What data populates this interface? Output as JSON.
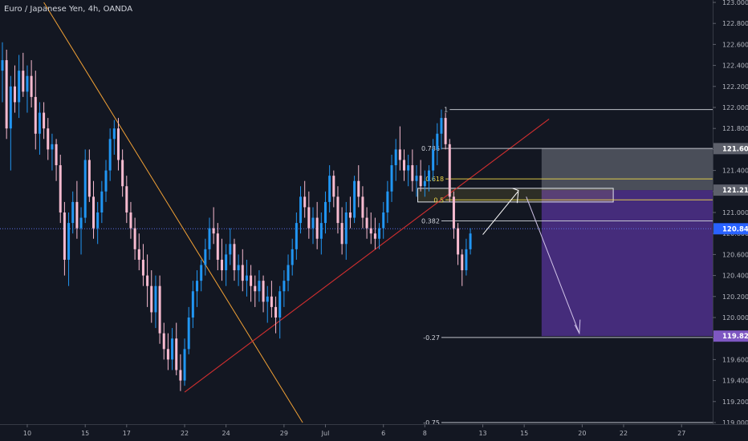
{
  "chart_data": {
    "type": "candlestick",
    "title": "Euro / Japanese Yen, 4h, OANDA",
    "ylim": [
      119.0,
      123.0
    ],
    "xlim": [
      0,
      180
    ],
    "y_ticks": [
      "123.000",
      "122.800",
      "122.600",
      "122.400",
      "122.200",
      "122.000",
      "121.800",
      "121.600",
      "121.400",
      "121.200",
      "121.000",
      "120.800",
      "120.600",
      "120.400",
      "120.200",
      "120.000",
      "119.800",
      "119.600",
      "119.400",
      "119.200",
      "119.000"
    ],
    "x_ticks": [
      {
        "label": "10",
        "x": 6
      },
      {
        "label": "15",
        "x": 20
      },
      {
        "label": "17",
        "x": 30
      },
      {
        "label": "22",
        "x": 44
      },
      {
        "label": "24",
        "x": 54
      },
      {
        "label": "29",
        "x": 68
      },
      {
        "label": "Jul",
        "x": 78
      },
      {
        "label": "6",
        "x": 92
      },
      {
        "label": "8",
        "x": 102
      },
      {
        "label": "13",
        "x": 116
      },
      {
        "label": "15",
        "x": 126
      },
      {
        "label": "20",
        "x": 140
      },
      {
        "label": "22",
        "x": 150
      },
      {
        "label": "27",
        "x": 164
      }
    ],
    "price_badges": [
      {
        "label": "121.608",
        "value": 121.608,
        "color": "#5d606b"
      },
      {
        "label": "121.213",
        "value": 121.213,
        "color": "#5d606b"
      },
      {
        "label": "120.845",
        "value": 120.845,
        "color": "#2962ff"
      },
      {
        "label": "119.823",
        "value": 119.823,
        "color": "#7e57c2"
      }
    ],
    "fib_levels": [
      {
        "label": "1",
        "value": 121.98,
        "x0": 108,
        "color": "#d1d4dc"
      },
      {
        "label": "0.786",
        "value": 121.61,
        "x0": 106,
        "color": "#d1d4dc"
      },
      {
        "label": "0.618",
        "value": 121.32,
        "x0": 107,
        "color": "#f0d94a"
      },
      {
        "label": "0.5",
        "value": 121.12,
        "x0": 107,
        "color": "#f0d94a"
      },
      {
        "label": "0.382",
        "value": 120.92,
        "x0": 106,
        "color": "#d1d4dc"
      },
      {
        "label": "-0.27",
        "value": 119.81,
        "x0": 106,
        "color": "#d1d4dc"
      },
      {
        "label": "-0.75",
        "value": 119.0,
        "x0": 106,
        "color": "#d1d4dc"
      }
    ],
    "candles": [
      {
        "t": 0,
        "o": 122.35,
        "h": 122.62,
        "l": 122.05,
        "c": 122.45
      },
      {
        "t": 1,
        "o": 122.45,
        "h": 122.55,
        "l": 121.7,
        "c": 121.8
      },
      {
        "t": 2,
        "o": 121.8,
        "h": 122.3,
        "l": 121.4,
        "c": 122.2
      },
      {
        "t": 3,
        "o": 122.2,
        "h": 122.4,
        "l": 121.95,
        "c": 122.05
      },
      {
        "t": 4,
        "o": 122.05,
        "h": 122.5,
        "l": 121.9,
        "c": 122.35
      },
      {
        "t": 5,
        "o": 122.35,
        "h": 122.52,
        "l": 122.1,
        "c": 122.15
      },
      {
        "t": 6,
        "o": 122.15,
        "h": 122.4,
        "l": 121.95,
        "c": 122.3
      },
      {
        "t": 7,
        "o": 122.3,
        "h": 122.45,
        "l": 122.0,
        "c": 122.1
      },
      {
        "t": 8,
        "o": 122.1,
        "h": 122.35,
        "l": 121.6,
        "c": 121.75
      },
      {
        "t": 9,
        "o": 121.75,
        "h": 122.05,
        "l": 121.55,
        "c": 121.95
      },
      {
        "t": 10,
        "o": 121.95,
        "h": 122.05,
        "l": 121.7,
        "c": 121.8
      },
      {
        "t": 11,
        "o": 121.8,
        "h": 121.9,
        "l": 121.5,
        "c": 121.6
      },
      {
        "t": 12,
        "o": 121.6,
        "h": 121.75,
        "l": 121.4,
        "c": 121.65
      },
      {
        "t": 13,
        "o": 121.65,
        "h": 121.7,
        "l": 121.3,
        "c": 121.45
      },
      {
        "t": 14,
        "o": 121.45,
        "h": 121.55,
        "l": 120.9,
        "c": 121.0
      },
      {
        "t": 15,
        "o": 121.0,
        "h": 121.1,
        "l": 120.4,
        "c": 120.55
      },
      {
        "t": 16,
        "o": 120.55,
        "h": 121.0,
        "l": 120.3,
        "c": 120.9
      },
      {
        "t": 17,
        "o": 120.9,
        "h": 121.2,
        "l": 120.8,
        "c": 121.1
      },
      {
        "t": 18,
        "o": 121.1,
        "h": 121.3,
        "l": 120.75,
        "c": 120.85
      },
      {
        "t": 19,
        "o": 120.85,
        "h": 121.05,
        "l": 120.6,
        "c": 120.95
      },
      {
        "t": 20,
        "o": 120.95,
        "h": 121.6,
        "l": 120.9,
        "c": 121.5
      },
      {
        "t": 21,
        "o": 121.5,
        "h": 121.6,
        "l": 121.1,
        "c": 121.15
      },
      {
        "t": 22,
        "o": 121.15,
        "h": 121.3,
        "l": 120.75,
        "c": 120.85
      },
      {
        "t": 23,
        "o": 120.85,
        "h": 121.1,
        "l": 120.7,
        "c": 121.0
      },
      {
        "t": 24,
        "o": 121.0,
        "h": 121.3,
        "l": 120.9,
        "c": 121.2
      },
      {
        "t": 25,
        "o": 121.2,
        "h": 121.5,
        "l": 121.1,
        "c": 121.4
      },
      {
        "t": 26,
        "o": 121.4,
        "h": 121.8,
        "l": 121.3,
        "c": 121.7
      },
      {
        "t": 27,
        "o": 121.7,
        "h": 121.88,
        "l": 121.55,
        "c": 121.8
      },
      {
        "t": 28,
        "o": 121.8,
        "h": 121.9,
        "l": 121.4,
        "c": 121.5
      },
      {
        "t": 29,
        "o": 121.5,
        "h": 121.6,
        "l": 121.15,
        "c": 121.25
      },
      {
        "t": 30,
        "o": 121.25,
        "h": 121.35,
        "l": 120.9,
        "c": 121.0
      },
      {
        "t": 31,
        "o": 121.0,
        "h": 121.1,
        "l": 120.75,
        "c": 120.85
      },
      {
        "t": 32,
        "o": 120.85,
        "h": 120.95,
        "l": 120.55,
        "c": 120.65
      },
      {
        "t": 33,
        "o": 120.65,
        "h": 120.8,
        "l": 120.45,
        "c": 120.55
      },
      {
        "t": 34,
        "o": 120.55,
        "h": 120.7,
        "l": 120.3,
        "c": 120.4
      },
      {
        "t": 35,
        "o": 120.4,
        "h": 120.6,
        "l": 120.1,
        "c": 120.3
      },
      {
        "t": 36,
        "o": 120.3,
        "h": 120.45,
        "l": 119.95,
        "c": 120.05
      },
      {
        "t": 37,
        "o": 120.05,
        "h": 120.4,
        "l": 119.9,
        "c": 120.3
      },
      {
        "t": 38,
        "o": 120.3,
        "h": 120.4,
        "l": 119.75,
        "c": 119.85
      },
      {
        "t": 39,
        "o": 119.85,
        "h": 119.95,
        "l": 119.6,
        "c": 119.7
      },
      {
        "t": 40,
        "o": 119.7,
        "h": 119.85,
        "l": 119.5,
        "c": 119.6
      },
      {
        "t": 41,
        "o": 119.6,
        "h": 119.9,
        "l": 119.5,
        "c": 119.8
      },
      {
        "t": 42,
        "o": 119.8,
        "h": 119.95,
        "l": 119.45,
        "c": 119.5
      },
      {
        "t": 43,
        "o": 119.5,
        "h": 119.65,
        "l": 119.3,
        "c": 119.4
      },
      {
        "t": 44,
        "o": 119.4,
        "h": 119.8,
        "l": 119.35,
        "c": 119.7
      },
      {
        "t": 45,
        "o": 119.7,
        "h": 120.1,
        "l": 119.65,
        "c": 120.0
      },
      {
        "t": 46,
        "o": 120.0,
        "h": 120.35,
        "l": 119.9,
        "c": 120.25
      },
      {
        "t": 47,
        "o": 120.25,
        "h": 120.45,
        "l": 120.1,
        "c": 120.35
      },
      {
        "t": 48,
        "o": 120.35,
        "h": 120.55,
        "l": 120.25,
        "c": 120.5
      },
      {
        "t": 49,
        "o": 120.5,
        "h": 120.75,
        "l": 120.4,
        "c": 120.65
      },
      {
        "t": 50,
        "o": 120.65,
        "h": 120.95,
        "l": 120.55,
        "c": 120.85
      },
      {
        "t": 51,
        "o": 120.85,
        "h": 121.05,
        "l": 120.7,
        "c": 120.8
      },
      {
        "t": 52,
        "o": 120.8,
        "h": 120.9,
        "l": 120.45,
        "c": 120.55
      },
      {
        "t": 53,
        "o": 120.55,
        "h": 120.75,
        "l": 120.35,
        "c": 120.45
      },
      {
        "t": 54,
        "o": 120.45,
        "h": 120.7,
        "l": 120.3,
        "c": 120.6
      },
      {
        "t": 55,
        "o": 120.6,
        "h": 120.85,
        "l": 120.5,
        "c": 120.7
      },
      {
        "t": 56,
        "o": 120.7,
        "h": 120.75,
        "l": 120.35,
        "c": 120.45
      },
      {
        "t": 57,
        "o": 120.45,
        "h": 120.6,
        "l": 120.3,
        "c": 120.5
      },
      {
        "t": 58,
        "o": 120.5,
        "h": 120.65,
        "l": 120.25,
        "c": 120.35
      },
      {
        "t": 59,
        "o": 120.35,
        "h": 120.55,
        "l": 120.2,
        "c": 120.4
      },
      {
        "t": 60,
        "o": 120.4,
        "h": 120.5,
        "l": 120.15,
        "c": 120.3
      },
      {
        "t": 61,
        "o": 120.3,
        "h": 120.4,
        "l": 120.1,
        "c": 120.25
      },
      {
        "t": 62,
        "o": 120.25,
        "h": 120.45,
        "l": 120.15,
        "c": 120.35
      },
      {
        "t": 63,
        "o": 120.35,
        "h": 120.4,
        "l": 120.05,
        "c": 120.15
      },
      {
        "t": 64,
        "o": 120.15,
        "h": 120.3,
        "l": 119.95,
        "c": 120.2
      },
      {
        "t": 65,
        "o": 120.2,
        "h": 120.35,
        "l": 120.0,
        "c": 120.1
      },
      {
        "t": 66,
        "o": 120.1,
        "h": 120.2,
        "l": 119.85,
        "c": 120.0
      },
      {
        "t": 67,
        "o": 120.0,
        "h": 120.3,
        "l": 119.8,
        "c": 120.25
      },
      {
        "t": 68,
        "o": 120.25,
        "h": 120.45,
        "l": 120.1,
        "c": 120.35
      },
      {
        "t": 69,
        "o": 120.35,
        "h": 120.6,
        "l": 120.25,
        "c": 120.5
      },
      {
        "t": 70,
        "o": 120.5,
        "h": 120.75,
        "l": 120.4,
        "c": 120.65
      },
      {
        "t": 71,
        "o": 120.65,
        "h": 121.0,
        "l": 120.55,
        "c": 120.9
      },
      {
        "t": 72,
        "o": 120.9,
        "h": 121.25,
        "l": 120.8,
        "c": 121.15
      },
      {
        "t": 73,
        "o": 121.15,
        "h": 121.3,
        "l": 120.95,
        "c": 121.05
      },
      {
        "t": 74,
        "o": 121.05,
        "h": 121.2,
        "l": 120.75,
        "c": 120.85
      },
      {
        "t": 75,
        "o": 120.85,
        "h": 121.05,
        "l": 120.7,
        "c": 120.95
      },
      {
        "t": 76,
        "o": 120.95,
        "h": 121.1,
        "l": 120.65,
        "c": 120.75
      },
      {
        "t": 77,
        "o": 120.75,
        "h": 121.0,
        "l": 120.6,
        "c": 120.9
      },
      {
        "t": 78,
        "o": 120.9,
        "h": 121.2,
        "l": 120.8,
        "c": 121.1
      },
      {
        "t": 79,
        "o": 121.1,
        "h": 121.45,
        "l": 121.0,
        "c": 121.35
      },
      {
        "t": 80,
        "o": 121.35,
        "h": 121.4,
        "l": 121.05,
        "c": 121.15
      },
      {
        "t": 81,
        "o": 121.15,
        "h": 121.25,
        "l": 120.8,
        "c": 120.9
      },
      {
        "t": 82,
        "o": 120.9,
        "h": 121.05,
        "l": 120.6,
        "c": 120.7
      },
      {
        "t": 83,
        "o": 120.7,
        "h": 121.1,
        "l": 120.55,
        "c": 121.0
      },
      {
        "t": 84,
        "o": 121.0,
        "h": 121.15,
        "l": 120.85,
        "c": 120.95
      },
      {
        "t": 85,
        "o": 120.95,
        "h": 121.35,
        "l": 120.9,
        "c": 121.3
      },
      {
        "t": 86,
        "o": 121.3,
        "h": 121.45,
        "l": 121.05,
        "c": 121.15
      },
      {
        "t": 87,
        "o": 121.15,
        "h": 121.25,
        "l": 120.85,
        "c": 120.95
      },
      {
        "t": 88,
        "o": 120.95,
        "h": 121.05,
        "l": 120.75,
        "c": 120.85
      },
      {
        "t": 89,
        "o": 120.85,
        "h": 121.0,
        "l": 120.7,
        "c": 120.8
      },
      {
        "t": 90,
        "o": 120.8,
        "h": 120.95,
        "l": 120.65,
        "c": 120.75
      },
      {
        "t": 91,
        "o": 120.75,
        "h": 120.9,
        "l": 120.65,
        "c": 120.85
      },
      {
        "t": 92,
        "o": 120.85,
        "h": 121.1,
        "l": 120.75,
        "c": 121.0
      },
      {
        "t": 93,
        "o": 121.0,
        "h": 121.3,
        "l": 120.9,
        "c": 121.2
      },
      {
        "t": 94,
        "o": 121.2,
        "h": 121.55,
        "l": 121.1,
        "c": 121.45
      },
      {
        "t": 95,
        "o": 121.45,
        "h": 121.7,
        "l": 121.3,
        "c": 121.6
      },
      {
        "t": 96,
        "o": 121.6,
        "h": 121.82,
        "l": 121.4,
        "c": 121.5
      },
      {
        "t": 97,
        "o": 121.5,
        "h": 121.6,
        "l": 121.3,
        "c": 121.4
      },
      {
        "t": 98,
        "o": 121.4,
        "h": 121.55,
        "l": 121.25,
        "c": 121.45
      },
      {
        "t": 99,
        "o": 121.45,
        "h": 121.6,
        "l": 121.2,
        "c": 121.3
      },
      {
        "t": 100,
        "o": 121.3,
        "h": 121.45,
        "l": 121.15,
        "c": 121.35
      },
      {
        "t": 101,
        "o": 121.35,
        "h": 121.5,
        "l": 121.2,
        "c": 121.25
      },
      {
        "t": 102,
        "o": 121.25,
        "h": 121.4,
        "l": 121.15,
        "c": 121.3
      },
      {
        "t": 103,
        "o": 121.3,
        "h": 121.45,
        "l": 121.2,
        "c": 121.4
      },
      {
        "t": 104,
        "o": 121.4,
        "h": 121.7,
        "l": 121.3,
        "c": 121.6
      },
      {
        "t": 105,
        "o": 121.6,
        "h": 121.85,
        "l": 121.45,
        "c": 121.75
      },
      {
        "t": 106,
        "o": 121.75,
        "h": 121.98,
        "l": 121.6,
        "c": 121.9
      },
      {
        "t": 107,
        "o": 121.9,
        "h": 121.95,
        "l": 121.6,
        "c": 121.65
      },
      {
        "t": 108,
        "o": 121.65,
        "h": 121.7,
        "l": 121.1,
        "c": 121.15
      },
      {
        "t": 109,
        "o": 121.15,
        "h": 121.2,
        "l": 120.75,
        "c": 120.85
      },
      {
        "t": 110,
        "o": 120.85,
        "h": 120.9,
        "l": 120.5,
        "c": 120.6
      },
      {
        "t": 111,
        "o": 120.6,
        "h": 120.65,
        "l": 120.3,
        "c": 120.45
      },
      {
        "t": 112,
        "o": 120.45,
        "h": 120.75,
        "l": 120.4,
        "c": 120.65
      },
      {
        "t": 113,
        "o": 120.65,
        "h": 120.85,
        "l": 120.6,
        "c": 120.8
      }
    ]
  }
}
